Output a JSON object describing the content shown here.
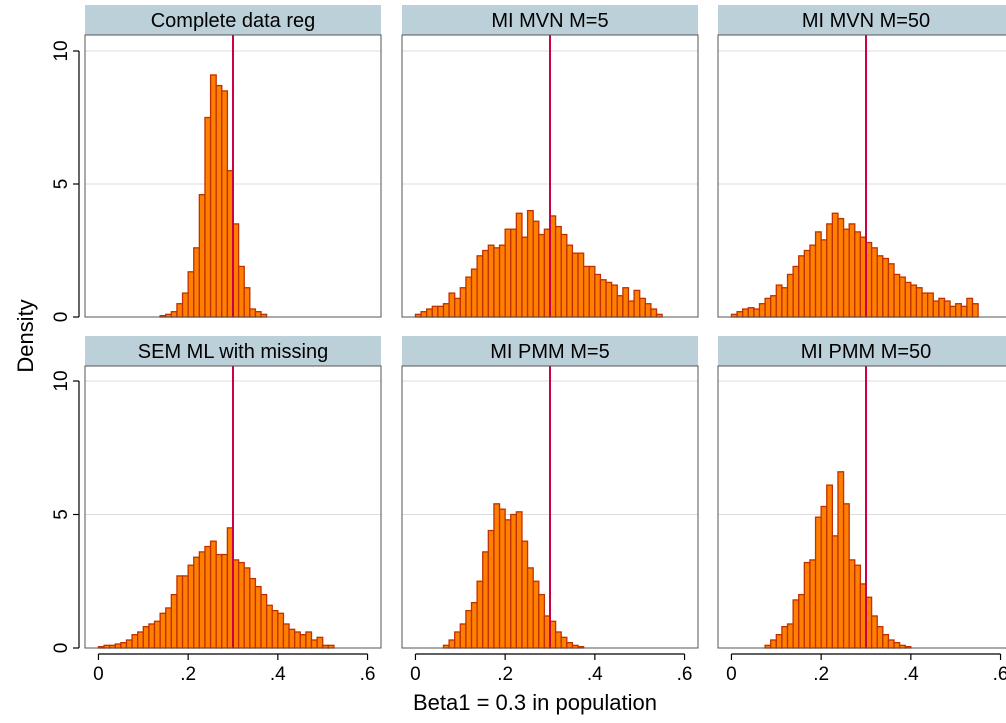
{
  "chart_data": {
    "type": "bar",
    "subtype": "histogram-small-multiples",
    "xlabel": "Beta1 = 0.3 in population",
    "ylabel": "Density",
    "xlim": [
      -0.03,
      0.63
    ],
    "ylim": [
      0,
      10.5
    ],
    "x_ticks": [
      0,
      0.2,
      0.4,
      0.6
    ],
    "x_tick_labels": [
      "0",
      ".2",
      ".4",
      ".6"
    ],
    "y_ticks": [
      0,
      5,
      10
    ],
    "y_tick_labels": [
      "0",
      "5",
      "10"
    ],
    "bin_width": 0.0125,
    "reference_x": 0.3,
    "grid": true,
    "colors": {
      "bar_fill": "#ff7f00",
      "bar_edge": "#c03000",
      "reference_line": "#cc0044",
      "strip_fill": "#bcd0da",
      "gridline": "#dcdcdc"
    },
    "panels": [
      {
        "title": "Complete data reg",
        "bin_start": 0.1375,
        "values": [
          0.05,
          0.1,
          0.2,
          0.5,
          0.9,
          1.7,
          2.6,
          4.6,
          7.5,
          9.1,
          8.7,
          8.5,
          5.5,
          3.5,
          1.9,
          1.1,
          0.3,
          0.2,
          0.1
        ]
      },
      {
        "title": "MI MVN M=5",
        "bin_start": 0,
        "values": [
          0.1,
          0.2,
          0.3,
          0.4,
          0.4,
          0.5,
          0.9,
          0.7,
          1.1,
          1.5,
          1.8,
          2.3,
          2.5,
          2.7,
          2.6,
          2.7,
          3.3,
          3.3,
          3.9,
          3.0,
          4.0,
          3.6,
          3.1,
          3.3,
          3.8,
          3.4,
          3.1,
          2.7,
          2.4,
          2.4,
          1.9,
          1.9,
          1.6,
          1.4,
          1.3,
          1.2,
          0.8,
          1.1,
          0.6,
          1.0,
          0.7,
          0.5,
          0.3,
          0.1
        ]
      },
      {
        "title": "MI MVN M=50",
        "bin_start": 0,
        "values": [
          0.1,
          0.2,
          0.3,
          0.35,
          0.3,
          0.5,
          0.7,
          0.8,
          1.2,
          1.1,
          1.6,
          1.9,
          2.3,
          2.5,
          2.7,
          3.2,
          2.9,
          3.5,
          3.9,
          3.7,
          3.3,
          3.5,
          3.2,
          3.0,
          2.8,
          2.6,
          2.3,
          2.2,
          2.0,
          1.6,
          1.5,
          1.3,
          1.2,
          1.1,
          0.9,
          0.9,
          0.6,
          0.7,
          0.6,
          0.4,
          0.5,
          0.4,
          0.7,
          0.5
        ]
      },
      {
        "title": "SEM ML with missing",
        "bin_start": 0,
        "values": [
          0.05,
          0.1,
          0.1,
          0.15,
          0.2,
          0.3,
          0.5,
          0.6,
          0.8,
          0.9,
          1.0,
          1.3,
          1.5,
          2.0,
          2.7,
          2.7,
          3.1,
          3.4,
          3.6,
          3.8,
          4.0,
          3.5,
          3.5,
          4.5,
          3.3,
          3.2,
          3.0,
          2.6,
          2.3,
          2.0,
          1.6,
          1.4,
          1.3,
          0.9,
          0.7,
          0.6,
          0.5,
          0.6,
          0.3,
          0.4,
          0.1,
          0.1
        ]
      },
      {
        "title": "MI PMM M=5",
        "bin_start": 0.0625,
        "values": [
          0.1,
          0.3,
          0.6,
          0.9,
          1.4,
          1.7,
          2.5,
          3.6,
          4.4,
          5.4,
          5.2,
          4.8,
          5.0,
          5.1,
          4.0,
          3.0,
          2.5,
          2.0,
          1.2,
          1.0,
          0.6,
          0.4,
          0.2,
          0.1,
          0.05
        ]
      },
      {
        "title": "MI PMM M=50",
        "bin_start": 0.075,
        "values": [
          0.1,
          0.3,
          0.5,
          0.8,
          0.9,
          1.8,
          2.0,
          3.2,
          3.3,
          4.9,
          5.3,
          6.1,
          4.2,
          6.6,
          5.4,
          3.3,
          3.1,
          2.4,
          1.9,
          1.2,
          0.8,
          0.5,
          0.3,
          0.2,
          0.1,
          0.05
        ]
      }
    ]
  }
}
